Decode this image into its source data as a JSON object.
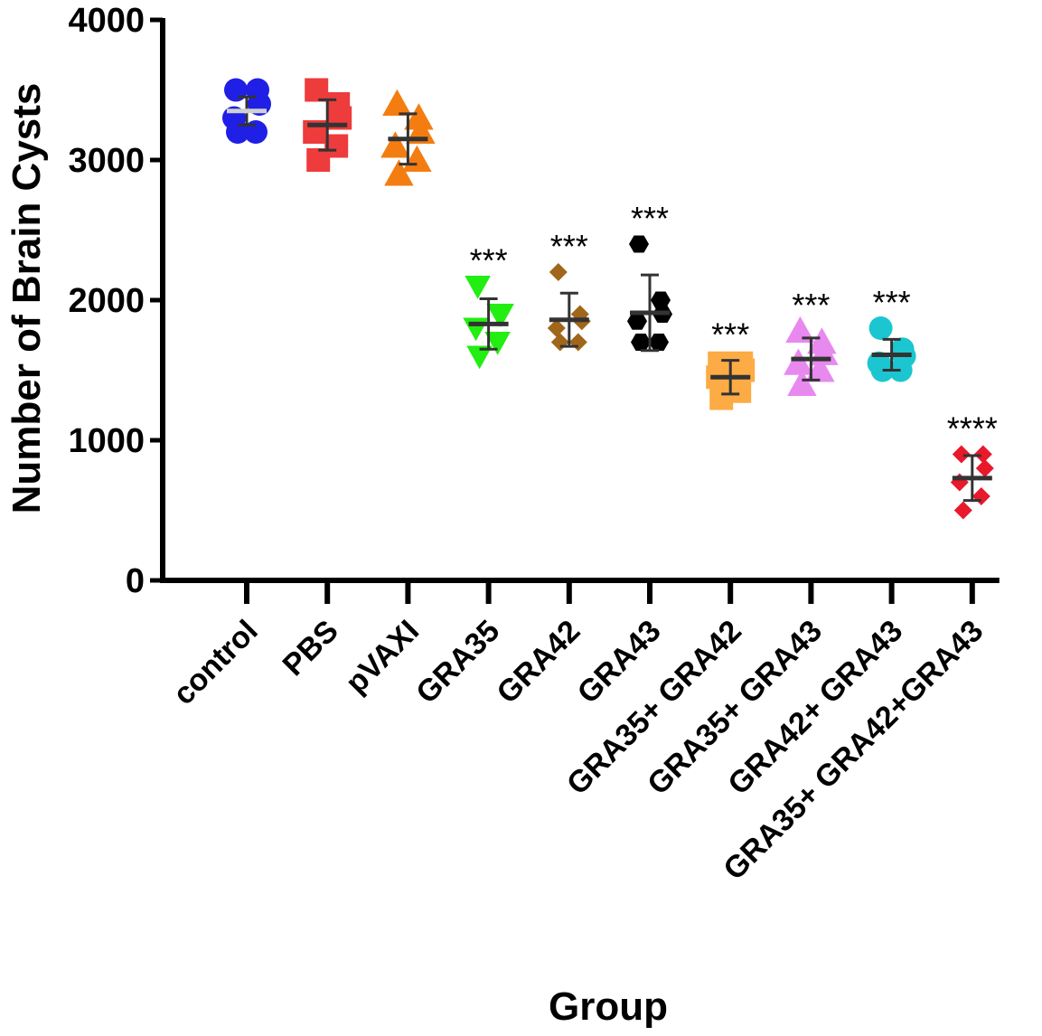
{
  "chart_data": {
    "type": "scatter",
    "title": "",
    "xlabel": "Group",
    "ylabel": "Number of Brain Cysts",
    "ylim": [
      0,
      4000
    ],
    "yticks": [
      "0",
      "1000",
      "2000",
      "3000",
      "4000"
    ],
    "grid": false,
    "categories": [
      "control",
      "PBS",
      "pVAXI",
      "GRA35",
      "GRA42",
      "GRA43",
      "GRA35+ GRA42",
      "GRA35+ GRA43",
      "GRA42+ GRA43",
      "GRA35+ GRA42+GRA43"
    ],
    "series": [
      {
        "name": "control",
        "marker": "circle",
        "color": "#1f1fe6",
        "mean": 3350,
        "sd": 100,
        "values": [
          3500,
          3500,
          3400,
          3300,
          3200,
          3200
        ],
        "significance": "",
        "mean_line_color": "#d0d0d0"
      },
      {
        "name": "PBS",
        "marker": "square",
        "color": "#ee3b3b",
        "mean": 3250,
        "sd": 180,
        "values": [
          3500,
          3400,
          3300,
          3200,
          3100,
          3000
        ],
        "significance": "",
        "mean_line_color": "#333333"
      },
      {
        "name": "pVAXI",
        "marker": "triangle-up",
        "color": "#f47d11",
        "mean": 3150,
        "sd": 180,
        "values": [
          3400,
          3300,
          3200,
          3100,
          3000,
          2900
        ],
        "significance": "",
        "mean_line_color": "#333333"
      },
      {
        "name": "GRA35",
        "marker": "triangle-down",
        "color": "#22ee11",
        "mean": 1830,
        "sd": 180,
        "values": [
          2100,
          1900,
          1900,
          1800,
          1700,
          1600
        ],
        "significance": "***",
        "mean_line_color": "#333333"
      },
      {
        "name": "GRA42",
        "marker": "diamond",
        "color": "#a0661a",
        "mean": 1860,
        "sd": 190,
        "values": [
          2200,
          1900,
          1850,
          1800,
          1700,
          1700
        ],
        "significance": "***",
        "mean_line_color": "#333333"
      },
      {
        "name": "GRA43",
        "marker": "hexagon",
        "color": "#000000",
        "mean": 1910,
        "sd": 270,
        "values": [
          2400,
          2000,
          1900,
          1850,
          1700,
          1700
        ],
        "significance": "***",
        "mean_line_color": "#333333"
      },
      {
        "name": "GRA35+ GRA42",
        "marker": "square",
        "color": "#fdab44",
        "mean": 1450,
        "sd": 120,
        "values": [
          1550,
          1550,
          1500,
          1450,
          1350,
          1300
        ],
        "significance": "***",
        "mean_line_color": "#333333"
      },
      {
        "name": "GRA35+ GRA43",
        "marker": "triangle-up",
        "color": "#e889f0",
        "mean": 1580,
        "sd": 150,
        "values": [
          1780,
          1700,
          1620,
          1550,
          1500,
          1400
        ],
        "significance": "***",
        "mean_line_color": "#333333"
      },
      {
        "name": "GRA42+ GRA43",
        "marker": "circle",
        "color": "#1cc6d0",
        "mean": 1610,
        "sd": 110,
        "values": [
          1800,
          1650,
          1600,
          1550,
          1500,
          1500
        ],
        "significance": "***",
        "mean_line_color": "#333333"
      },
      {
        "name": "GRA35+ GRA42+GRA43",
        "marker": "diamond",
        "color": "#e8192b",
        "mean": 730,
        "sd": 160,
        "values": [
          900,
          900,
          800,
          700,
          600,
          500
        ],
        "significance": "****",
        "mean_line_color": "#333333"
      }
    ]
  }
}
